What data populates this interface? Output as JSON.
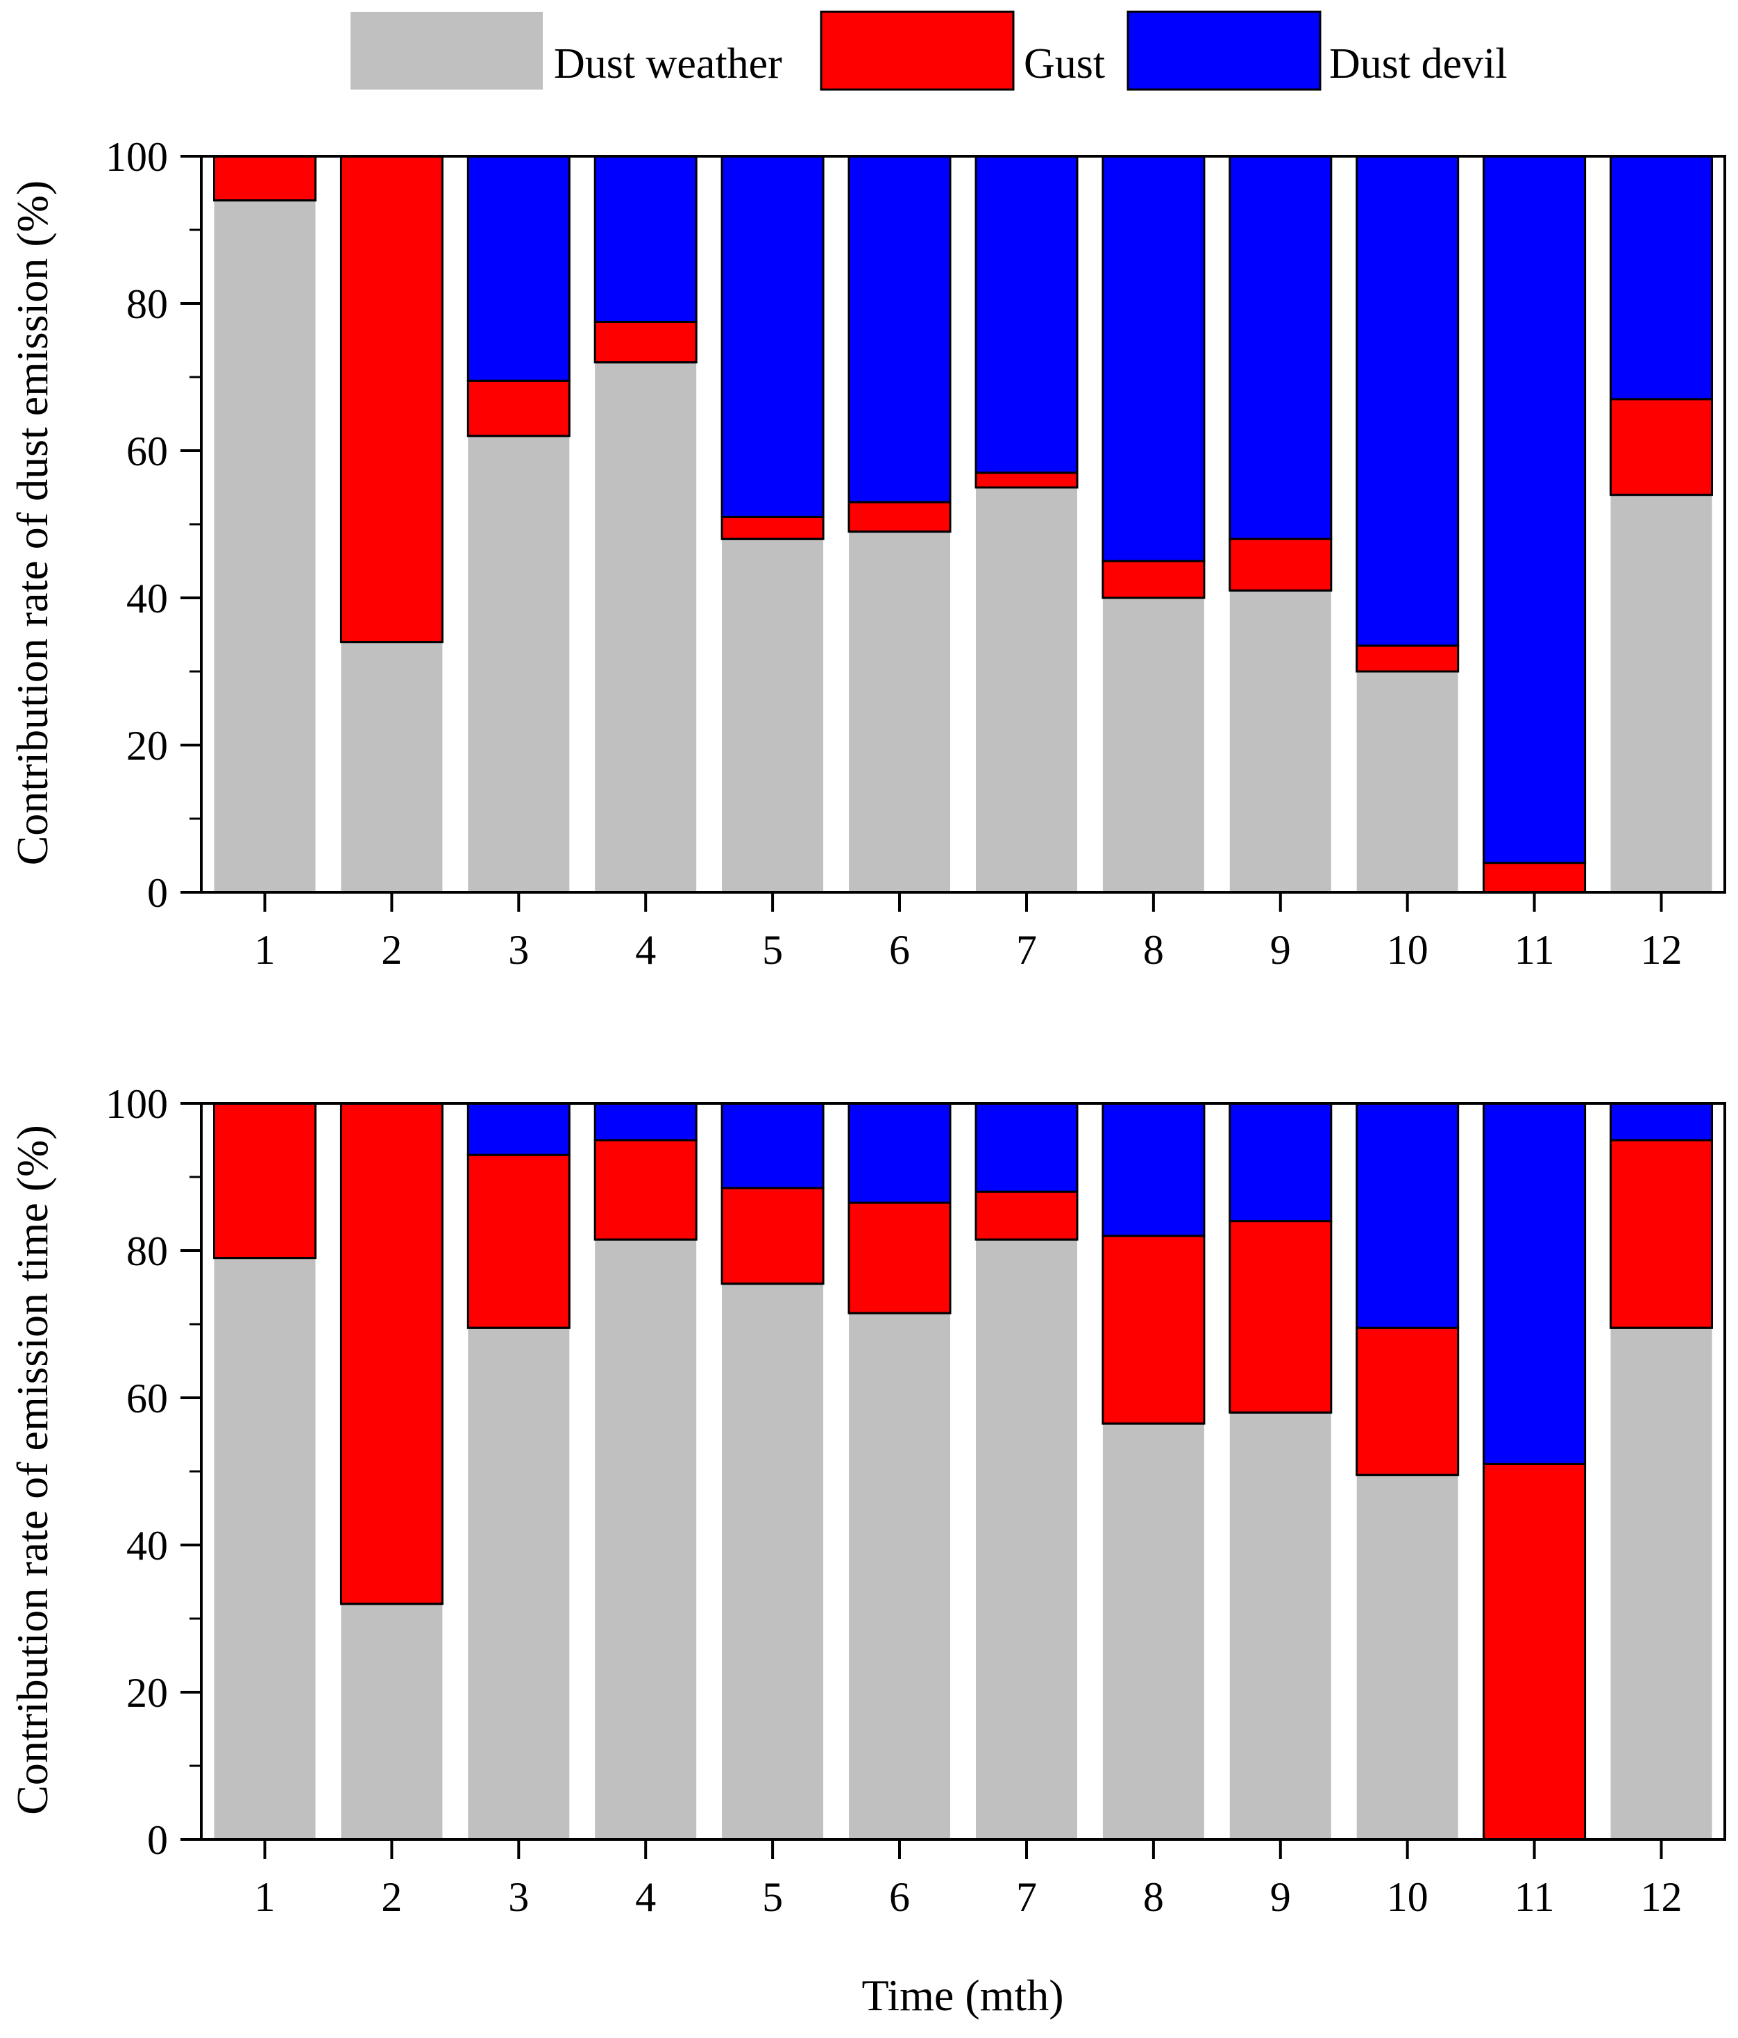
{
  "colors": {
    "dust_weather": "#c0c0c0",
    "gust": "#ff0000",
    "dust_devil": "#0000ff",
    "outline": "#000000"
  },
  "legend": {
    "items": [
      {
        "key": "dust_weather",
        "label": "Dust weather",
        "color": "#c0c0c0"
      },
      {
        "key": "gust",
        "label": "Gust",
        "color": "#ff0000"
      },
      {
        "key": "dust_devil",
        "label": "Dust devil",
        "color": "#0000ff"
      }
    ]
  },
  "shared_xlabel": "Time (mth)",
  "chart_data": [
    {
      "type": "bar",
      "stacked": true,
      "title": "",
      "xlabel": "Time (mth)",
      "ylabel": "Contribution rate of dust emission (%)",
      "ylim": [
        0,
        100
      ],
      "yticks": [
        0,
        20,
        40,
        60,
        80,
        100
      ],
      "categories": [
        "1",
        "2",
        "3",
        "4",
        "5",
        "6",
        "7",
        "8",
        "9",
        "10",
        "11",
        "12"
      ],
      "series": [
        {
          "name": "Dust weather",
          "key": "dust_weather",
          "values": [
            94,
            34,
            62,
            72,
            48,
            49,
            55,
            40,
            41,
            30,
            0,
            54
          ]
        },
        {
          "name": "Gust",
          "key": "gust",
          "values": [
            6,
            66,
            7.5,
            5.5,
            3,
            4,
            2,
            5,
            7,
            3.5,
            4,
            13
          ]
        },
        {
          "name": "Dust devil",
          "key": "dust_devil",
          "values": [
            0,
            0,
            30.5,
            22.5,
            49,
            47,
            43,
            55,
            52,
            66.5,
            96,
            33
          ]
        }
      ]
    },
    {
      "type": "bar",
      "stacked": true,
      "title": "",
      "xlabel": "Time (mth)",
      "ylabel": "Contribution rate of emission time (%)",
      "ylim": [
        0,
        100
      ],
      "yticks": [
        0,
        20,
        40,
        60,
        80,
        100
      ],
      "categories": [
        "1",
        "2",
        "3",
        "4",
        "5",
        "6",
        "7",
        "8",
        "9",
        "10",
        "11",
        "12"
      ],
      "series": [
        {
          "name": "Dust weather",
          "key": "dust_weather",
          "values": [
            79,
            32,
            69.5,
            81.5,
            75.5,
            71.5,
            81.5,
            56.5,
            58,
            49.5,
            0,
            69.5
          ]
        },
        {
          "name": "Gust",
          "key": "gust",
          "values": [
            21,
            68,
            23.5,
            13.5,
            13,
            15,
            6.5,
            25.5,
            26,
            20,
            51,
            25.5
          ]
        },
        {
          "name": "Dust devil",
          "key": "dust_devil",
          "values": [
            0,
            0,
            7,
            5,
            11.5,
            13.5,
            12,
            18,
            16,
            30.5,
            49,
            5
          ]
        }
      ]
    }
  ]
}
